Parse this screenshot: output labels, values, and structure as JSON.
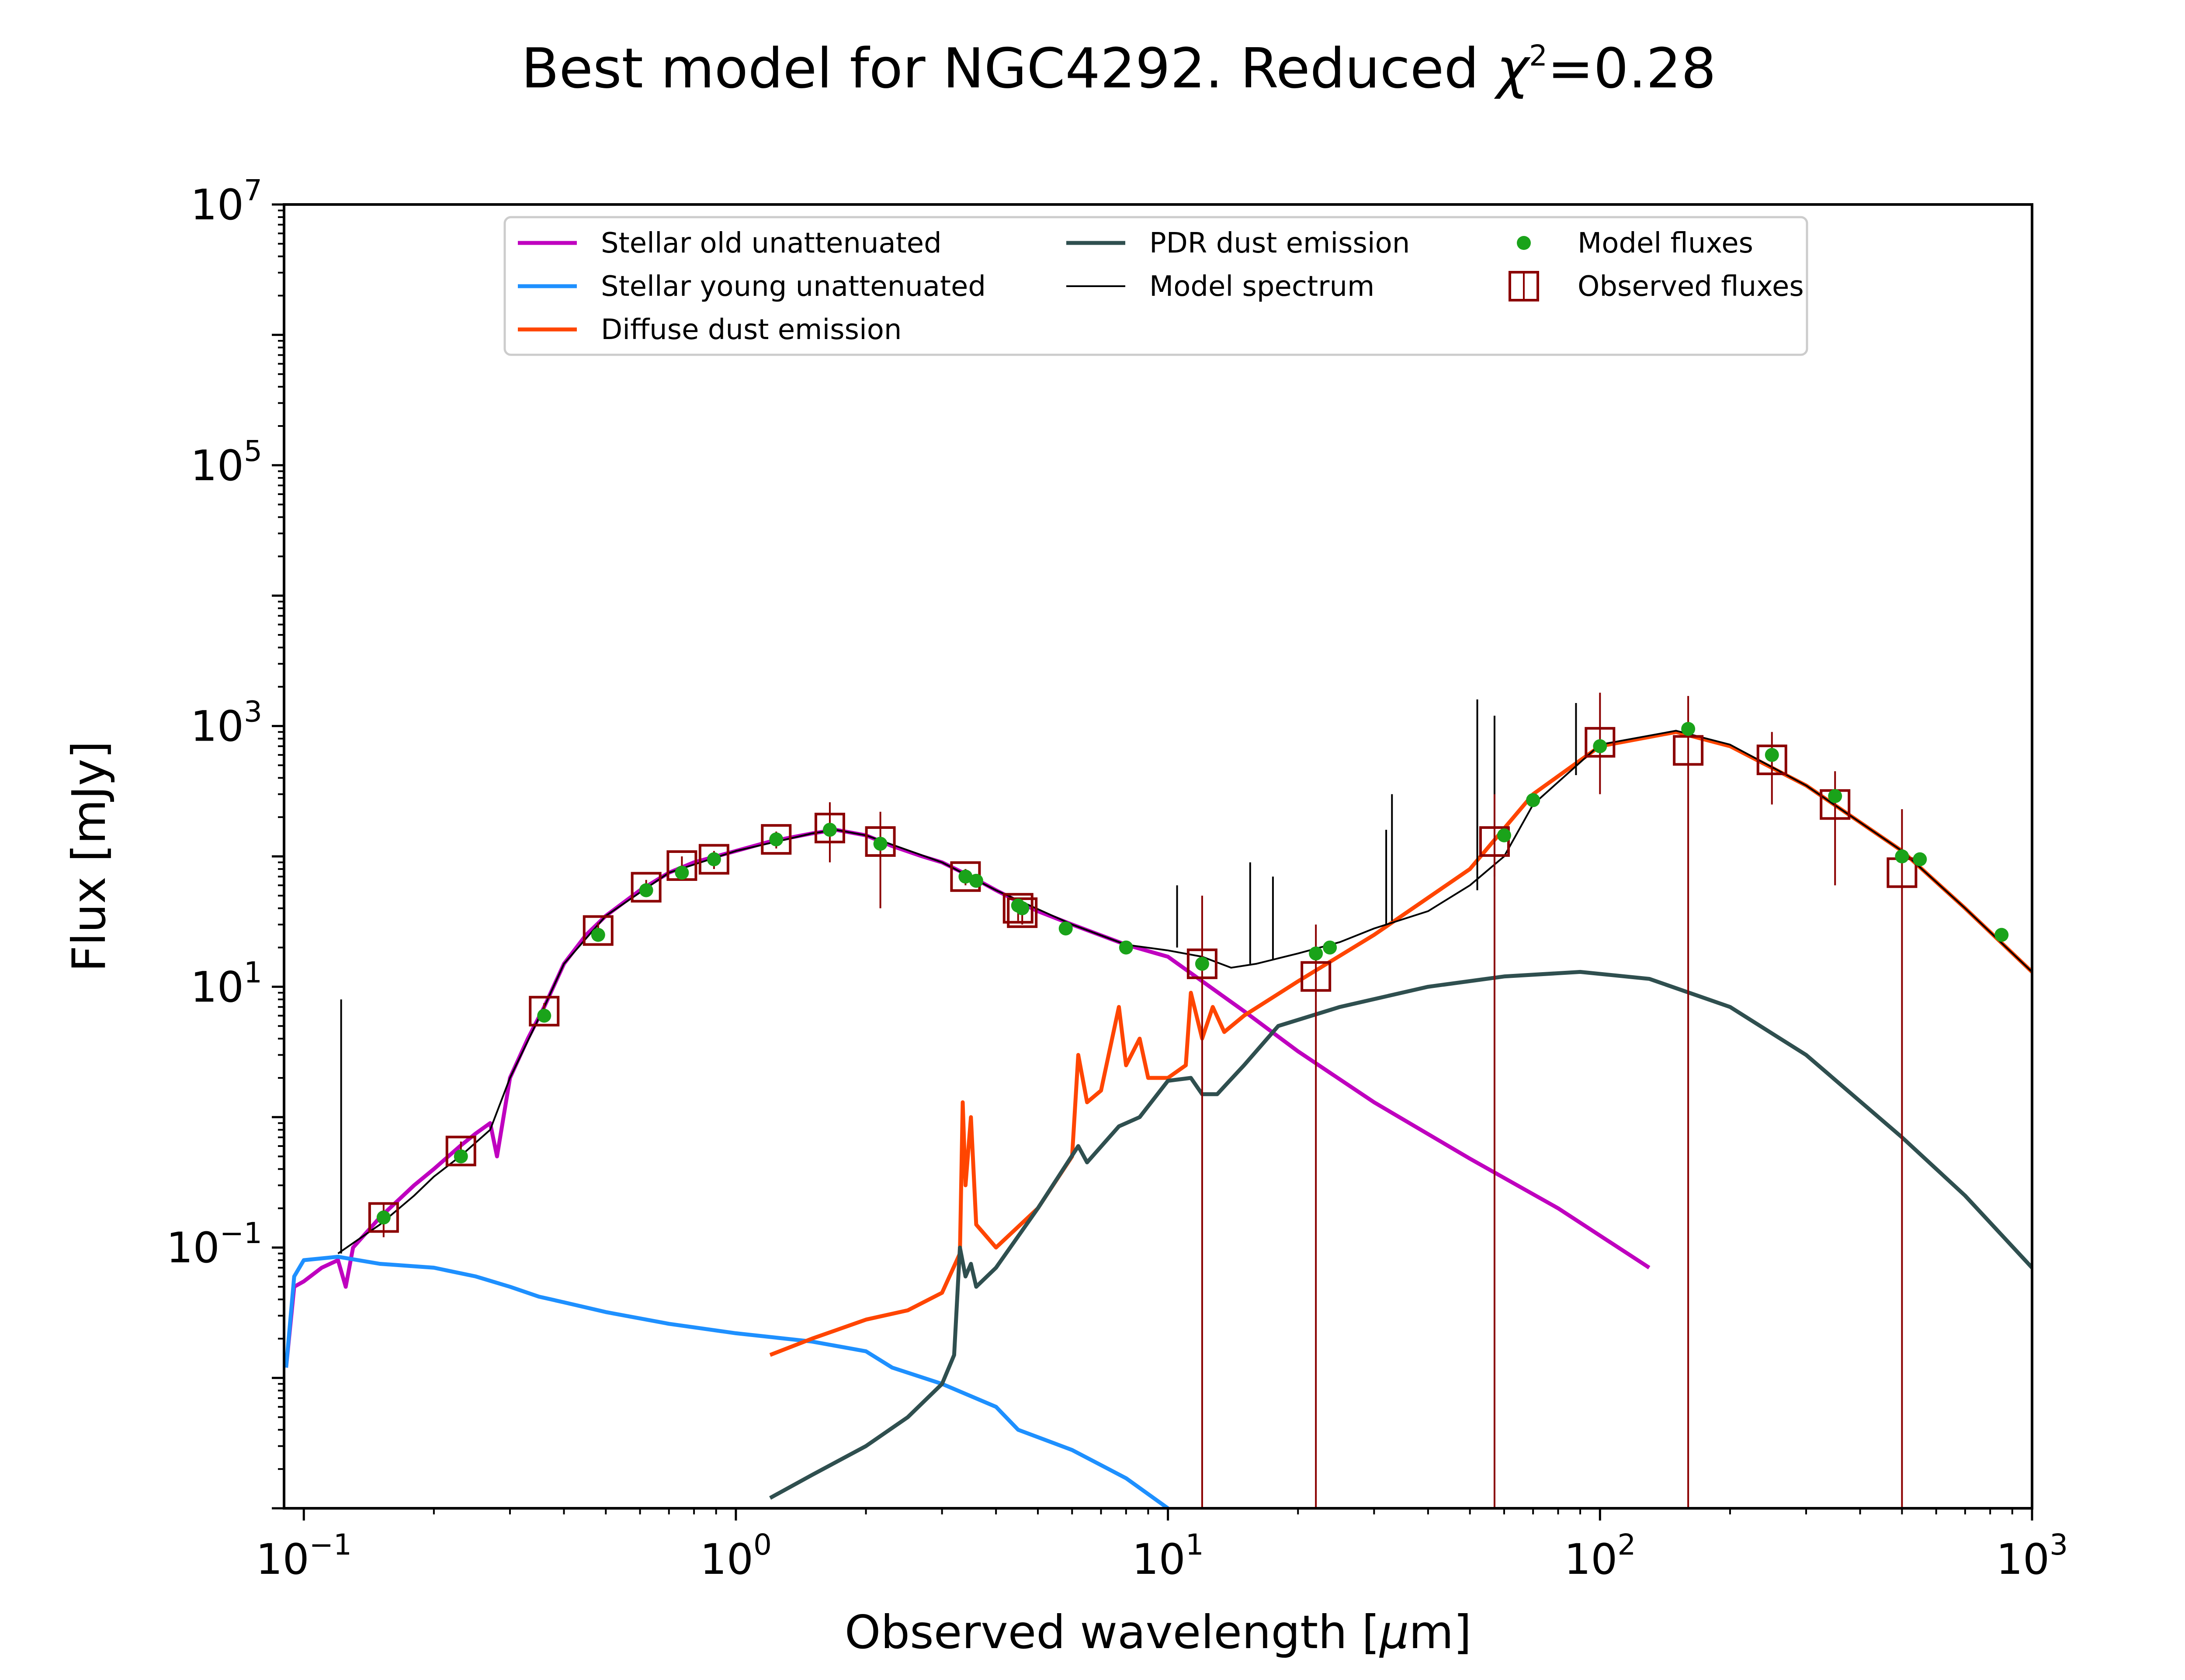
{
  "chart_data": {
    "type": "line",
    "title_main": "Best model for NGC4292. Reduced ",
    "title_chi": "χ",
    "title_chi_sup": "2",
    "title_value": "=0.28",
    "xlabel_pre": "Observed wavelength [",
    "xlabel_mu": "μ",
    "xlabel_post": "m]",
    "ylabel": "Flux [mJy]",
    "xscale": "log",
    "yscale": "log",
    "xlim": [
      0.09,
      1000
    ],
    "ylim": [
      0.001,
      10000000
    ],
    "x_ticks": [
      {
        "value": 0.1,
        "base": "10",
        "exp": "−1"
      },
      {
        "value": 1,
        "base": "10",
        "exp": "0"
      },
      {
        "value": 10,
        "base": "10",
        "exp": "1"
      },
      {
        "value": 100,
        "base": "10",
        "exp": "2"
      },
      {
        "value": 1000,
        "base": "10",
        "exp": "3"
      }
    ],
    "y_ticks": [
      {
        "value": 0.1,
        "base": "10",
        "exp": "−1"
      },
      {
        "value": 10,
        "base": "10",
        "exp": "1"
      },
      {
        "value": 1000,
        "base": "10",
        "exp": "3"
      },
      {
        "value": 100000,
        "base": "10",
        "exp": "5"
      },
      {
        "value": 10000000,
        "base": "10",
        "exp": "7"
      }
    ],
    "legend_position": "upper center",
    "legend": [
      {
        "label": "Stellar old unattenuated",
        "color": "#bf00bf",
        "kind": "line"
      },
      {
        "label": "Stellar young unattenuated",
        "color": "#1e90ff",
        "kind": "line"
      },
      {
        "label": "Diffuse dust emission",
        "color": "#ff4500",
        "kind": "line"
      },
      {
        "label": "PDR dust emission",
        "color": "#2f4f4f",
        "kind": "line"
      },
      {
        "label": "Model spectrum",
        "color": "#000000",
        "kind": "thinline"
      },
      {
        "label": "Model fluxes",
        "color": "#1aa31a",
        "kind": "dot"
      },
      {
        "label": "Observed fluxes",
        "color": "#8b0000",
        "kind": "square"
      }
    ],
    "series": [
      {
        "name": "Stellar old unattenuated",
        "color": "#bf00bf",
        "points": [
          [
            0.091,
            0.012
          ],
          [
            0.095,
            0.05
          ],
          [
            0.1,
            0.055
          ],
          [
            0.11,
            0.07
          ],
          [
            0.12,
            0.08
          ],
          [
            0.125,
            0.05
          ],
          [
            0.13,
            0.1
          ],
          [
            0.15,
            0.17
          ],
          [
            0.18,
            0.3
          ],
          [
            0.2,
            0.4
          ],
          [
            0.23,
            0.6
          ],
          [
            0.25,
            0.75
          ],
          [
            0.27,
            0.9
          ],
          [
            0.28,
            0.5
          ],
          [
            0.3,
            2.0
          ],
          [
            0.33,
            4.0
          ],
          [
            0.36,
            7.0
          ],
          [
            0.4,
            15
          ],
          [
            0.45,
            25
          ],
          [
            0.5,
            35
          ],
          [
            0.6,
            55
          ],
          [
            0.7,
            75
          ],
          [
            0.8,
            90
          ],
          [
            1.0,
            110
          ],
          [
            1.2,
            130
          ],
          [
            1.5,
            150
          ],
          [
            1.7,
            160
          ],
          [
            2.0,
            145
          ],
          [
            2.3,
            120
          ],
          [
            2.7,
            100
          ],
          [
            3.0,
            90
          ],
          [
            3.5,
            70
          ],
          [
            4.0,
            55
          ],
          [
            4.5,
            45
          ],
          [
            5.0,
            38
          ],
          [
            6.0,
            30
          ],
          [
            8.0,
            21
          ],
          [
            10.0,
            17
          ],
          [
            15.0,
            6.5
          ],
          [
            20.0,
            3.2
          ],
          [
            30.0,
            1.3
          ],
          [
            50.0,
            0.48
          ],
          [
            80.0,
            0.2
          ],
          [
            130.0,
            0.07
          ]
        ]
      },
      {
        "name": "Stellar young unattenuated",
        "color": "#1e90ff",
        "points": [
          [
            0.091,
            0.012
          ],
          [
            0.095,
            0.06
          ],
          [
            0.1,
            0.08
          ],
          [
            0.12,
            0.085
          ],
          [
            0.15,
            0.075
          ],
          [
            0.2,
            0.07
          ],
          [
            0.25,
            0.06
          ],
          [
            0.3,
            0.05
          ],
          [
            0.35,
            0.042
          ],
          [
            0.4,
            0.038
          ],
          [
            0.5,
            0.032
          ],
          [
            0.7,
            0.026
          ],
          [
            1.0,
            0.022
          ],
          [
            1.5,
            0.019
          ],
          [
            2.0,
            0.016
          ],
          [
            2.3,
            0.012
          ],
          [
            3.0,
            0.009
          ],
          [
            4.0,
            0.006
          ],
          [
            4.5,
            0.004
          ],
          [
            6.0,
            0.0028
          ],
          [
            8.0,
            0.0017
          ],
          [
            10.0,
            0.001
          ]
        ]
      },
      {
        "name": "Diffuse dust emission",
        "color": "#ff4500",
        "points": [
          [
            1.2,
            0.015
          ],
          [
            1.5,
            0.02
          ],
          [
            2.0,
            0.028
          ],
          [
            2.5,
            0.033
          ],
          [
            3.0,
            0.045
          ],
          [
            3.3,
            0.09
          ],
          [
            3.35,
            1.3
          ],
          [
            3.4,
            0.3
          ],
          [
            3.5,
            1.0
          ],
          [
            3.6,
            0.15
          ],
          [
            4.0,
            0.1
          ],
          [
            5.0,
            0.2
          ],
          [
            6.0,
            0.5
          ],
          [
            6.2,
            3.0
          ],
          [
            6.5,
            1.3
          ],
          [
            7.0,
            1.6
          ],
          [
            7.7,
            7.0
          ],
          [
            8.0,
            2.5
          ],
          [
            8.6,
            4.0
          ],
          [
            9.0,
            2.0
          ],
          [
            10.0,
            2.0
          ],
          [
            11.0,
            2.5
          ],
          [
            11.3,
            9.0
          ],
          [
            12.0,
            4.0
          ],
          [
            12.7,
            7.0
          ],
          [
            13.5,
            4.5
          ],
          [
            15.0,
            6.0
          ],
          [
            20.0,
            11
          ],
          [
            30.0,
            25
          ],
          [
            50.0,
            80
          ],
          [
            70.0,
            300
          ],
          [
            100.0,
            700
          ],
          [
            150.0,
            900
          ],
          [
            200.0,
            700
          ],
          [
            300.0,
            350
          ],
          [
            500.0,
            110
          ],
          [
            700.0,
            40
          ],
          [
            1000.0,
            13
          ]
        ]
      },
      {
        "name": "PDR dust emission",
        "color": "#2f4f4f",
        "points": [
          [
            1.2,
            0.0012
          ],
          [
            1.5,
            0.0018
          ],
          [
            2.0,
            0.003
          ],
          [
            2.5,
            0.005
          ],
          [
            3.0,
            0.009
          ],
          [
            3.2,
            0.015
          ],
          [
            3.3,
            0.1
          ],
          [
            3.4,
            0.06
          ],
          [
            3.5,
            0.075
          ],
          [
            3.6,
            0.05
          ],
          [
            4.0,
            0.07
          ],
          [
            5.0,
            0.2
          ],
          [
            6.2,
            0.6
          ],
          [
            6.5,
            0.45
          ],
          [
            7.7,
            0.85
          ],
          [
            8.6,
            1.0
          ],
          [
            10.0,
            1.9
          ],
          [
            11.3,
            2.0
          ],
          [
            12.0,
            1.5
          ],
          [
            13.0,
            1.5
          ],
          [
            15.0,
            2.5
          ],
          [
            18.0,
            5.0
          ],
          [
            25.0,
            7.0
          ],
          [
            40.0,
            10.0
          ],
          [
            60.0,
            12.0
          ],
          [
            90.0,
            13.0
          ],
          [
            130.0,
            11.5
          ],
          [
            200.0,
            7.0
          ],
          [
            300.0,
            3.0
          ],
          [
            500.0,
            0.7
          ],
          [
            700.0,
            0.25
          ],
          [
            1000.0,
            0.07
          ]
        ]
      },
      {
        "name": "Model spectrum",
        "color": "#000000",
        "points": [
          [
            0.12,
            0.09
          ],
          [
            0.15,
            0.15
          ],
          [
            0.18,
            0.25
          ],
          [
            0.2,
            0.35
          ],
          [
            0.23,
            0.5
          ],
          [
            0.27,
            0.8
          ],
          [
            0.3,
            2.0
          ],
          [
            0.36,
            7.0
          ],
          [
            0.4,
            15
          ],
          [
            0.5,
            35
          ],
          [
            0.7,
            75
          ],
          [
            1.0,
            110
          ],
          [
            1.5,
            150
          ],
          [
            1.7,
            160
          ],
          [
            2.0,
            145
          ],
          [
            3.0,
            90
          ],
          [
            4.0,
            55
          ],
          [
            6.0,
            30
          ],
          [
            8.0,
            21
          ],
          [
            10.0,
            19
          ],
          [
            12.0,
            17
          ],
          [
            14.0,
            14
          ],
          [
            16.0,
            15
          ],
          [
            20.0,
            18
          ],
          [
            25.0,
            22
          ],
          [
            30.0,
            28
          ],
          [
            40.0,
            38
          ],
          [
            50.0,
            60
          ],
          [
            60.0,
            100
          ],
          [
            70.0,
            250
          ],
          [
            100.0,
            720
          ],
          [
            150.0,
            920
          ],
          [
            200.0,
            720
          ],
          [
            300.0,
            350
          ],
          [
            500.0,
            110
          ],
          [
            700.0,
            40
          ],
          [
            1000.0,
            13
          ]
        ],
        "spikes": [
          [
            0.122,
            0.09,
            8.0
          ],
          [
            10.5,
            20,
            60
          ],
          [
            15.5,
            15,
            90
          ],
          [
            17.5,
            16,
            70
          ],
          [
            32.0,
            30,
            160
          ],
          [
            33.0,
            32,
            300
          ],
          [
            52.0,
            55,
            1600
          ],
          [
            57.0,
            70,
            1200
          ],
          [
            88.0,
            420,
            1500
          ]
        ]
      }
    ],
    "model_fluxes": [
      [
        0.153,
        0.17
      ],
      [
        0.231,
        0.5
      ],
      [
        0.36,
        6.0
      ],
      [
        0.48,
        25
      ],
      [
        0.62,
        55
      ],
      [
        0.75,
        75
      ],
      [
        0.89,
        95
      ],
      [
        1.24,
        135
      ],
      [
        1.65,
        160
      ],
      [
        2.16,
        125
      ],
      [
        3.4,
        70
      ],
      [
        3.6,
        65
      ],
      [
        4.5,
        42
      ],
      [
        4.6,
        40
      ],
      [
        5.8,
        28
      ],
      [
        8.0,
        20
      ],
      [
        12.0,
        15
      ],
      [
        22.0,
        18
      ],
      [
        23.7,
        20
      ],
      [
        60.0,
        145
      ],
      [
        70.0,
        270
      ],
      [
        100.0,
        700
      ],
      [
        160.0,
        950
      ],
      [
        250.0,
        600
      ],
      [
        350.0,
        290
      ],
      [
        500.0,
        100
      ],
      [
        550.0,
        95
      ],
      [
        850.0,
        25
      ]
    ],
    "observed_fluxes": [
      {
        "x": 0.153,
        "y": 0.17,
        "lo": 0.12,
        "hi": 0.22
      },
      {
        "x": 0.231,
        "y": 0.55,
        "lo": 0.45,
        "hi": 0.65
      },
      {
        "x": 0.36,
        "y": 6.5,
        "lo": 5.5,
        "hi": 7.5
      },
      {
        "x": 0.48,
        "y": 27,
        "lo": 23,
        "hi": 31
      },
      {
        "x": 0.62,
        "y": 58,
        "lo": 50,
        "hi": 66
      },
      {
        "x": 0.75,
        "y": 85,
        "lo": 70,
        "hi": 100
      },
      {
        "x": 0.89,
        "y": 95,
        "lo": 80,
        "hi": 110
      },
      {
        "x": 1.24,
        "y": 135,
        "lo": 115,
        "hi": 155
      },
      {
        "x": 1.65,
        "y": 165,
        "lo": 90,
        "hi": 260
      },
      {
        "x": 2.16,
        "y": 130,
        "lo": 40,
        "hi": 220
      },
      {
        "x": 3.4,
        "y": 70,
        "lo": 60,
        "hi": 80
      },
      {
        "x": 4.5,
        "y": 40,
        "lo": 32,
        "hi": 48
      },
      {
        "x": 4.6,
        "y": 37,
        "lo": 30,
        "hi": 44
      },
      {
        "x": 12.0,
        "y": 15,
        "lo": 0.001,
        "hi": 50
      },
      {
        "x": 22.0,
        "y": 12,
        "lo": 0.001,
        "hi": 30
      },
      {
        "x": 57.0,
        "y": 130,
        "lo": 0.001,
        "hi": 300
      },
      {
        "x": 100.0,
        "y": 750,
        "lo": 300,
        "hi": 1800
      },
      {
        "x": 160.0,
        "y": 650,
        "lo": 0.001,
        "hi": 1700
      },
      {
        "x": 250.0,
        "y": 550,
        "lo": 250,
        "hi": 900
      },
      {
        "x": 350.0,
        "y": 250,
        "lo": 60,
        "hi": 450
      },
      {
        "x": 500.0,
        "y": 75,
        "lo": 0.001,
        "hi": 230
      }
    ]
  }
}
